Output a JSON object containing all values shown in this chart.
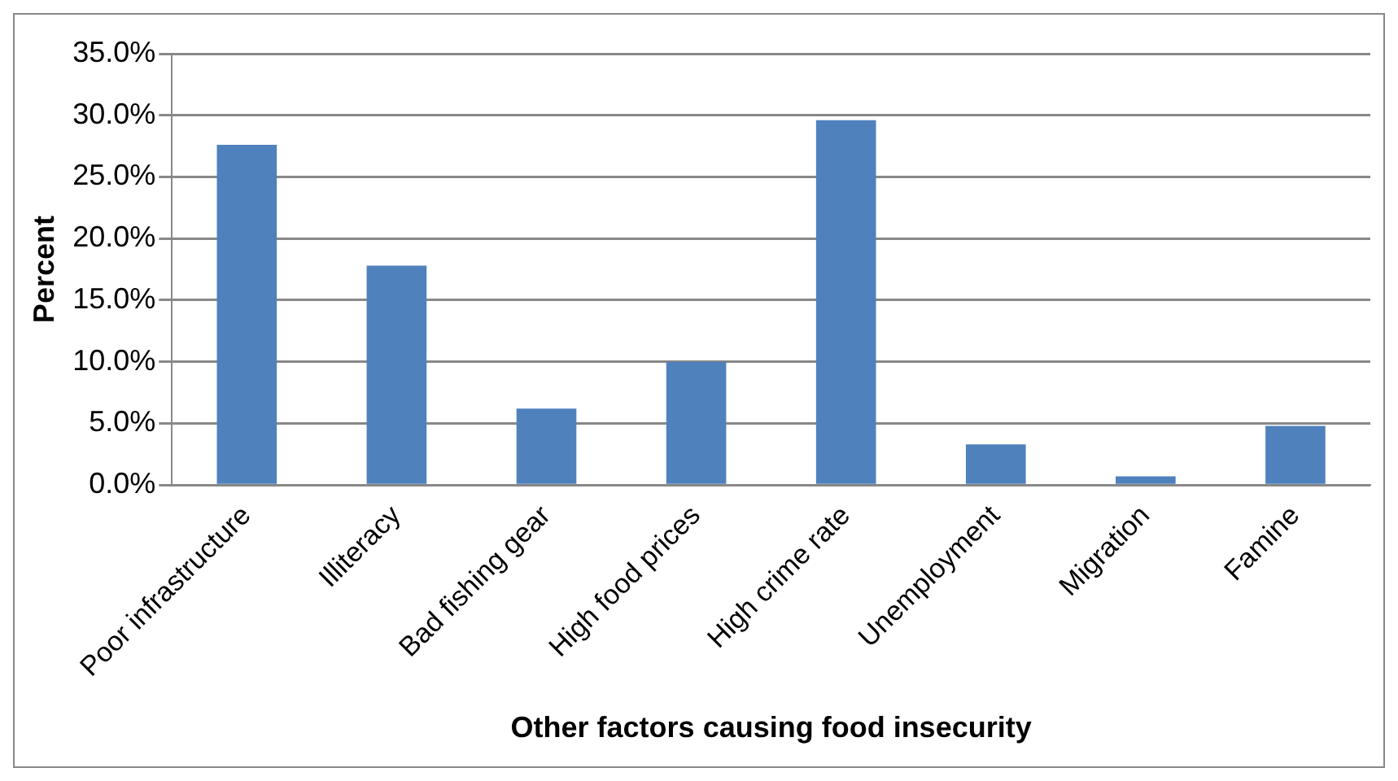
{
  "chart_data": {
    "type": "bar",
    "xlabel": "Other factors causing food insecurity",
    "ylabel": "Percent",
    "categories": [
      "Poor infrastructure",
      "Illiteracy",
      "Bad fishing gear",
      "High food prices",
      "High crime rate",
      "Unemployment",
      "Migration",
      "Famine"
    ],
    "values": [
      27.6,
      17.8,
      6.2,
      10.0,
      29.6,
      3.3,
      0.7,
      4.8
    ],
    "color": "#4f81bd",
    "ylim": [
      0,
      35
    ],
    "yticks": [
      {
        "value": 0,
        "label": "0.0%"
      },
      {
        "value": 5,
        "label": "5.0%"
      },
      {
        "value": 10,
        "label": "10.0%"
      },
      {
        "value": 15,
        "label": "15.0%"
      },
      {
        "value": 20,
        "label": "20.0%"
      },
      {
        "value": 25,
        "label": "25.0%"
      },
      {
        "value": 30,
        "label": "30.0%"
      },
      {
        "value": 35,
        "label": "35.0%"
      }
    ],
    "grid": "y",
    "legend": false
  }
}
